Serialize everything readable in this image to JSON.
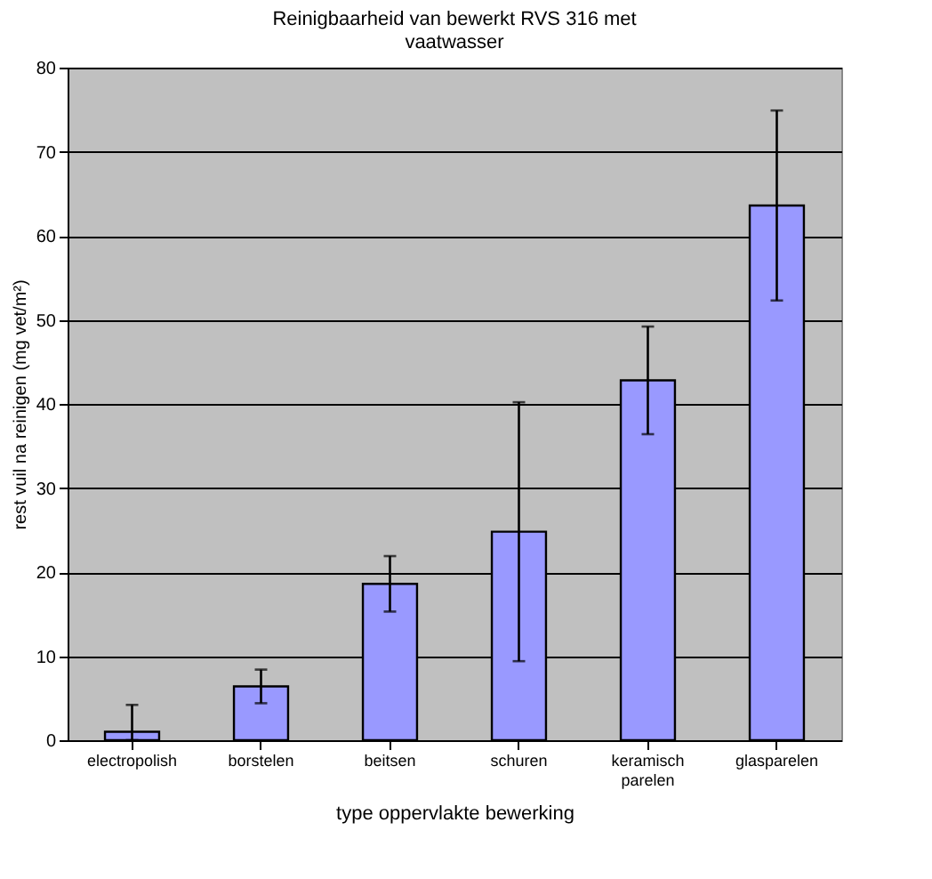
{
  "chart_data": {
    "type": "bar",
    "title": "Reinigbaarheid van bewerkt RVS 316 met vaatwasser",
    "xlabel": "type oppervlakte bewerking",
    "ylabel": "rest vuil na reinigen (mg vet/m²)",
    "categories": [
      "electropolish",
      "borstelen",
      "beitsen",
      "schuren",
      "keramisch parelen",
      "glasparelen"
    ],
    "series": [
      {
        "color": "#9999ff",
        "values": [
          1.0,
          6.4,
          18.6,
          24.8,
          42.8,
          63.6
        ],
        "errors": [
          [
            0,
            4.2
          ],
          2.0,
          3.3,
          15.4,
          6.4,
          11.3
        ]
      }
    ],
    "ylim": [
      0,
      80
    ],
    "yticks": [
      0,
      10,
      20,
      30,
      40,
      50,
      60,
      70,
      80
    ],
    "grid": "y"
  }
}
